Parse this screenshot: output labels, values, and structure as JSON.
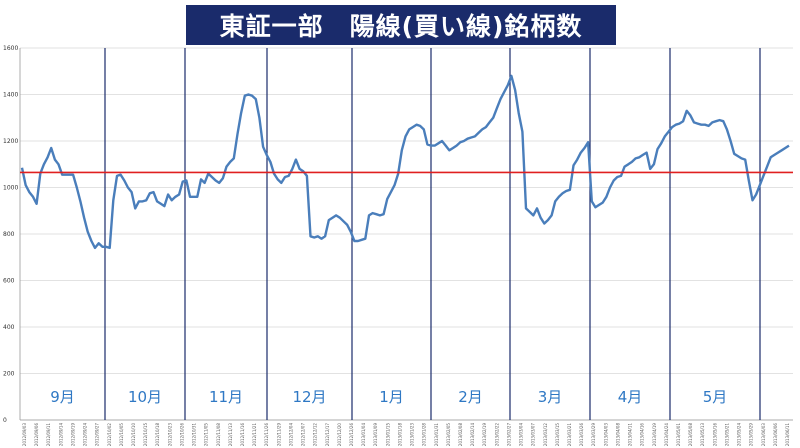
{
  "chart_data": {
    "type": "line",
    "title": "東証一部　陽線(買い線)銘柄数",
    "ylim": [
      0,
      1600
    ],
    "yticks": [
      0,
      200,
      400,
      600,
      800,
      1000,
      1200,
      1400,
      1600
    ],
    "grid": "horizontal",
    "reference_line": {
      "value": 1065,
      "color": "#e02020"
    },
    "series_color": "#4a7ebb",
    "months": [
      "9月",
      "10月",
      "11月",
      "12月",
      "1月",
      "2月",
      "3月",
      "4月",
      "5月"
    ],
    "x_tick_labels": [
      "2012/09/03",
      "2012/09/06",
      "2012/09/11",
      "2012/09/14",
      "2012/09/19",
      "2012/09/24",
      "2012/09/27",
      "2012/10/02",
      "2012/10/05",
      "2012/10/10",
      "2012/10/15",
      "2012/10/18",
      "2012/10/23",
      "2012/10/26",
      "2012/10/31",
      "2012/11/05",
      "2012/11/08",
      "2012/11/13",
      "2012/11/16",
      "2012/11/21",
      "2012/11/26",
      "2012/11/29",
      "2012/12/04",
      "2012/12/07",
      "2012/12/12",
      "2012/12/17",
      "2012/12/20",
      "2012/12/26",
      "2013/01/04",
      "2013/01/09",
      "2013/01/15",
      "2013/01/18",
      "2013/01/23",
      "2013/01/28",
      "2013/01/31",
      "2013/02/05",
      "2013/02/08",
      "2013/02/14",
      "2013/02/19",
      "2013/02/22",
      "2013/02/27",
      "2013/03/04",
      "2013/03/07",
      "2013/03/12",
      "2013/03/15",
      "2013/03/21",
      "2013/03/26",
      "2013/03/29",
      "2013/04/03",
      "2013/04/08",
      "2013/04/11",
      "2013/04/16",
      "2013/04/19",
      "2013/04/24",
      "2013/05/01",
      "2013/05/08",
      "2013/05/13",
      "2013/05/16",
      "2013/05/21",
      "2013/05/24",
      "2013/05/29",
      "2013/06/03",
      "2013/06/06",
      "2013/06/11"
    ],
    "values": [
      1085,
      1010,
      980,
      960,
      930,
      1060,
      1100,
      1130,
      1170,
      1120,
      1100,
      1055,
      1055,
      1055,
      1055,
      1000,
      940,
      870,
      810,
      770,
      740,
      760,
      745,
      745,
      740,
      945,
      1050,
      1055,
      1030,
      1000,
      980,
      910,
      940,
      940,
      945,
      975,
      980,
      940,
      930,
      920,
      970,
      945,
      960,
      970,
      1025,
      1030,
      960,
      960,
      960,
      1035,
      1020,
      1060,
      1045,
      1030,
      1020,
      1040,
      1090,
      1110,
      1125,
      1230,
      1320,
      1395,
      1400,
      1395,
      1380,
      1300,
      1175,
      1140,
      1110,
      1060,
      1035,
      1020,
      1045,
      1050,
      1080,
      1120,
      1080,
      1070,
      1050,
      790,
      785,
      790,
      780,
      790,
      860,
      870,
      880,
      870,
      855,
      840,
      810,
      770,
      770,
      775,
      780,
      880,
      890,
      885,
      880,
      885,
      950,
      980,
      1010,
      1060,
      1160,
      1220,
      1250,
      1260,
      1270,
      1265,
      1250,
      1185,
      1180,
      1180,
      1190,
      1200,
      1180,
      1160,
      1170,
      1180,
      1195,
      1200,
      1210,
      1215,
      1220,
      1235,
      1250,
      1260,
      1280,
      1300,
      1340,
      1380,
      1410,
      1440,
      1480,
      1420,
      1320,
      1240,
      910,
      895,
      880,
      910,
      870,
      845,
      860,
      880,
      940,
      960,
      975,
      985,
      990,
      1095,
      1120,
      1150,
      1170,
      1195,
      940,
      915,
      925,
      935,
      960,
      1000,
      1030,
      1045,
      1050,
      1090,
      1100,
      1110,
      1125,
      1130,
      1140,
      1150,
      1080,
      1100,
      1165,
      1190,
      1220,
      1240,
      1260,
      1270,
      1275,
      1285,
      1330,
      1310,
      1280,
      1275,
      1270,
      1270,
      1265,
      1280,
      1285,
      1290,
      1285,
      1250,
      1200,
      1145,
      1135,
      1125,
      1120,
      1030,
      945,
      970,
      1010,
      1050,
      1090,
      1130,
      1140,
      1150,
      1160,
      1170,
      1180
    ]
  }
}
